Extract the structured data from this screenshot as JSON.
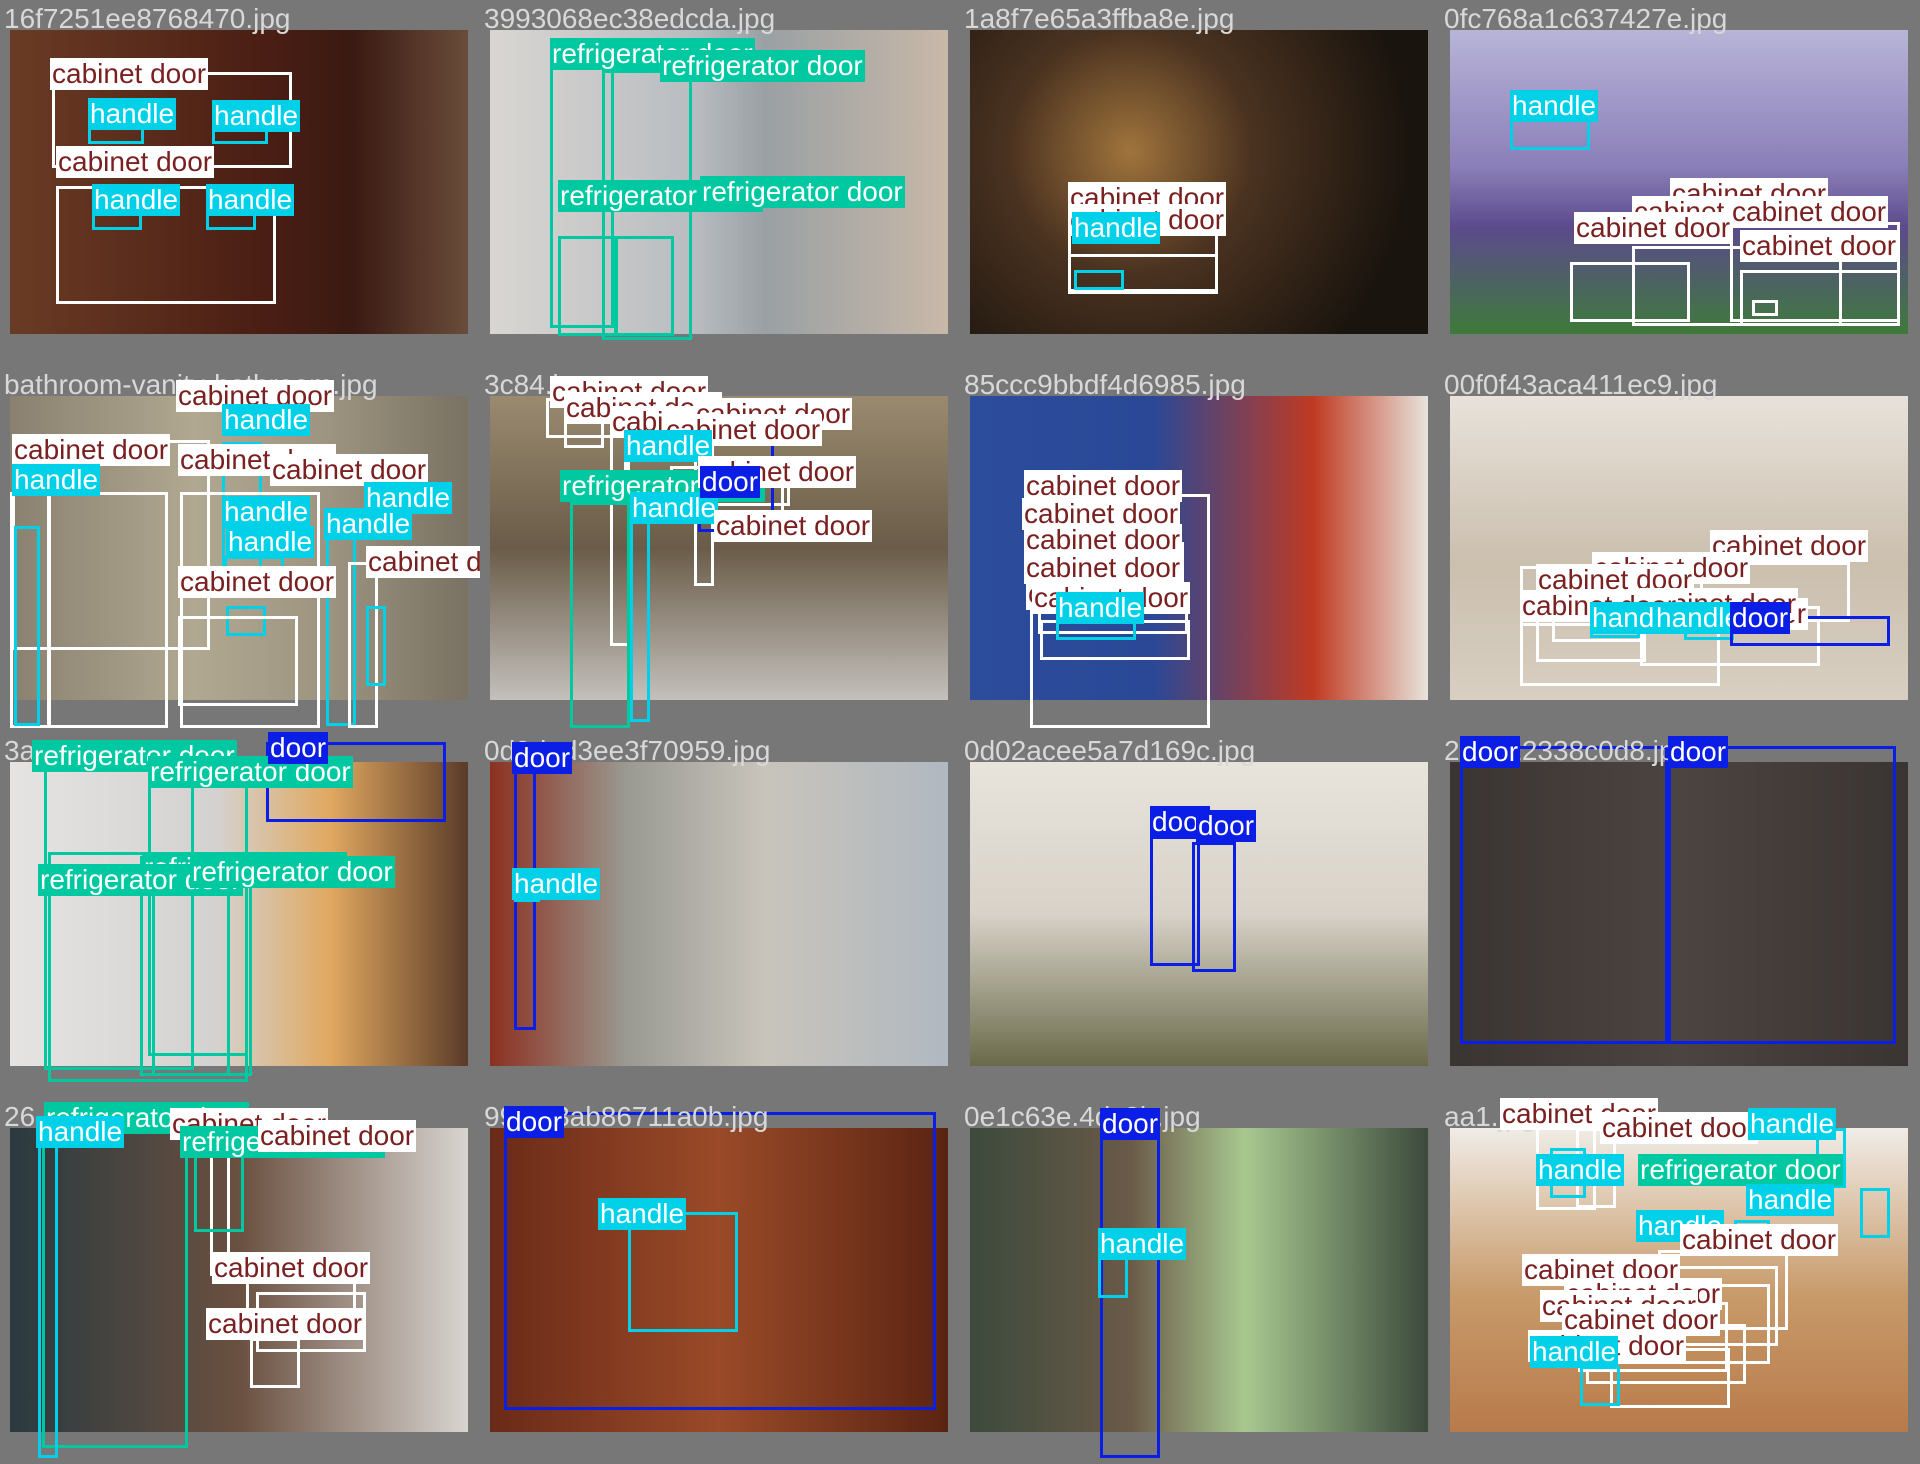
{
  "colors": {
    "cabinet door": "#ffffff",
    "handle": "#00d0e8",
    "refrigerator door": "#00c8a0",
    "door": "#0a1ee6",
    "tile_background": "#777777",
    "filename_text": "#d8d8d8",
    "cabinet_label_text": "#7a2020"
  },
  "tiles": [
    {
      "name": "16f7251ee8768470.jpg",
      "labels": [
        "cabinet door",
        "handle",
        "handle",
        "cabinet door",
        "handle",
        "handle"
      ]
    },
    {
      "name": "3993068ec38edcda.jpg",
      "labels": [
        "refrigerator door",
        "refrigerator door",
        "refrigerator door",
        "refrigerator door"
      ]
    },
    {
      "name": "1a8f7e65a3ffba8e.jpg",
      "labels": [
        "cabinet door",
        "cabinet door",
        "handle"
      ]
    },
    {
      "name": "0fc768a1c637427e.jpg",
      "labels": [
        "cabinet door",
        "cabinet door",
        "cabinet door",
        "cabinet door",
        "cabinet door",
        "handle"
      ]
    },
    {
      "name": "bathroom-vanity-bathroom.jpg",
      "labels": [
        "cabinet door",
        "handle",
        "cabinet door",
        "cabinet door",
        "cabinet door",
        "handle",
        "handle",
        "handle",
        "cabinet door",
        "handle",
        "handle",
        "cabinet door"
      ]
    },
    {
      "name": "3c84.jpg",
      "labels": [
        "cabinet door",
        "cabinet door",
        "cabinet door",
        "cabinet door",
        "cabinet door",
        "handle",
        "refrigerator door",
        "handle",
        "cabinet door",
        "door",
        "cabinet door"
      ]
    },
    {
      "name": "85ccc9bbdf4d6985.jpg",
      "labels": [
        "cabinet door",
        "cabinet door",
        "cabinet door",
        "cabinet door",
        "cabinet door",
        "cabinet door",
        "handle"
      ]
    },
    {
      "name": "00f0f43aca411ec9.jpg",
      "labels": [
        "cabinet door",
        "cabinet door",
        "cabinet door",
        "cabinet door",
        "cabinet door",
        "cabinet door",
        "handle",
        "handle",
        "door"
      ]
    },
    {
      "name": "3a.jpg",
      "labels": [
        "refrigerator door",
        "refrigerator door",
        "refrigerator door",
        "refrigerator door",
        "refrigerator door",
        "door"
      ]
    },
    {
      "name": "0d9ded3ee3f70959.jpg",
      "labels": [
        "door",
        "handle"
      ]
    },
    {
      "name": "0d02acee5a7d169c.jpg",
      "labels": [
        "door",
        "door"
      ]
    },
    {
      "name": "25d512338c0d8.jpg",
      "labels": [
        "door",
        "door"
      ]
    },
    {
      "name": "26.jpg",
      "labels": [
        "refrigerator door",
        "handle",
        "cabinet door",
        "refrigerator door",
        "cabinet door",
        "cabinet door",
        "cabinet door"
      ]
    },
    {
      "name": "99b5.3ab86711a0b.jpg",
      "labels": [
        "door",
        "handle"
      ]
    },
    {
      "name": "0e1c63e.4dc3b.jpg",
      "labels": [
        "door",
        "handle"
      ]
    },
    {
      "name": "aa1.jpg",
      "labels": [
        "cabinet door",
        "cabinet door",
        "handle",
        "handle",
        "refrigerator door",
        "handle",
        "handle",
        "cabinet door",
        "cabinet door",
        "cabinet door",
        "cabinet door",
        "cabinet door",
        "cabinet door",
        "handle"
      ]
    }
  ]
}
